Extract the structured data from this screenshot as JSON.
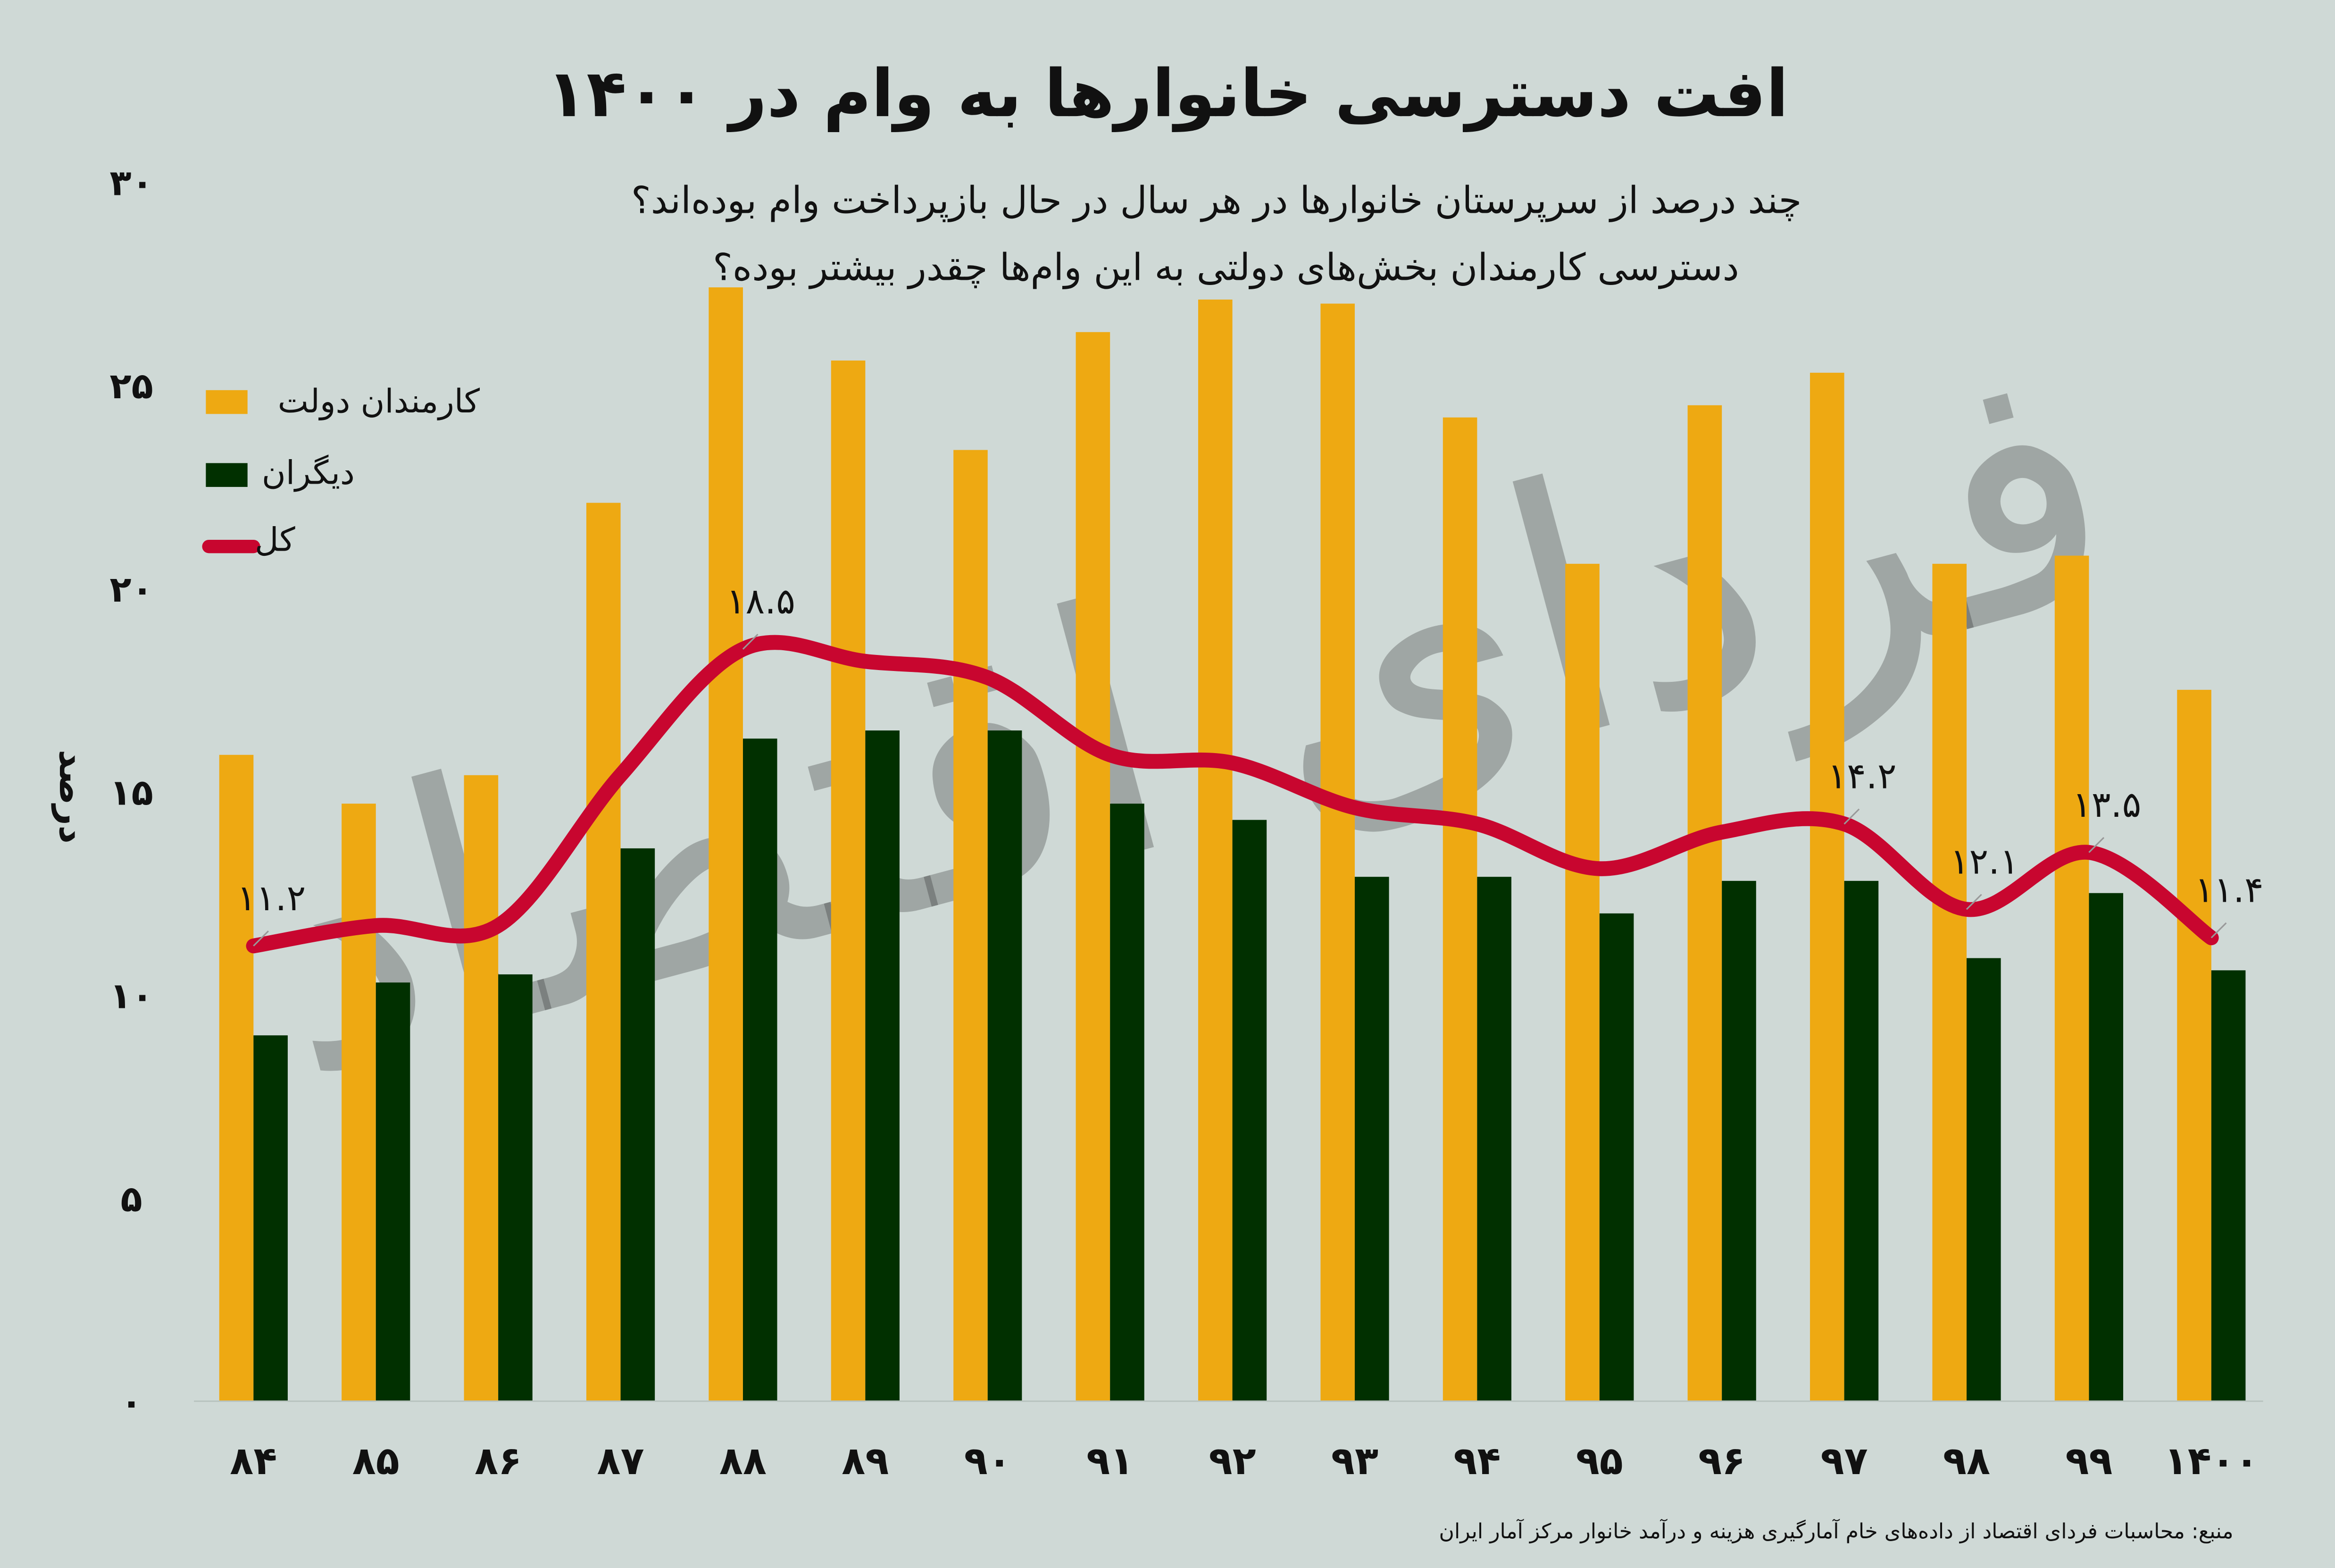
{
  "colors": {
    "background": "#cfd9d6",
    "government": "#eea912",
    "others": "#013000",
    "total": "#c8062f"
  },
  "chart_data": {
    "type": "bar",
    "title": "افت دسترسی خانوارها به وام در ۱۴۰۰",
    "subtitle_lines": [
      "چند درصد از سرپرستان خانوارها در هر سال در حال بازپرداخت وام بوده‌اند؟",
      "دسترسی کارمندان بخش‌های دولتی به این وام‌ها چقدر بیشتر بوده؟"
    ],
    "ylabel": "درصد",
    "xlabel": "",
    "ylim": [
      0,
      30
    ],
    "yticks": [
      0,
      5,
      10,
      15,
      20,
      25,
      30
    ],
    "ytick_labels": [
      "۰",
      "۵",
      "۱۰",
      "۱۵",
      "۲۰",
      "۲۵",
      "۳۰"
    ],
    "grid": false,
    "legend_position": "top-left",
    "categories": [
      "۸۴",
      "۸۵",
      "۸۶",
      "۸۷",
      "۸۸",
      "۸۹",
      "۹۰",
      "۹۱",
      "۹۲",
      "۹۳",
      "۹۴",
      "۹۵",
      "۹۶",
      "۹۷",
      "۹۸",
      "۹۹",
      "۱۴۰۰"
    ],
    "series": [
      {
        "name": "کارمندان دولت",
        "type": "bar",
        "values": [
          15.9,
          14.7,
          15.4,
          22.1,
          27.4,
          25.6,
          23.4,
          26.3,
          27.1,
          27.0,
          24.2,
          20.6,
          24.5,
          25.3,
          20.6,
          20.8,
          17.5
        ]
      },
      {
        "name": "دیگران",
        "type": "bar",
        "values": [
          9.0,
          10.3,
          10.5,
          13.6,
          16.3,
          16.5,
          16.5,
          14.7,
          14.3,
          12.9,
          12.9,
          12.0,
          12.8,
          12.8,
          10.9,
          12.5,
          10.6
        ]
      },
      {
        "name": "کل",
        "type": "line",
        "values": [
          11.2,
          11.7,
          11.7,
          15.4,
          18.5,
          18.2,
          17.8,
          15.9,
          15.7,
          14.6,
          14.2,
          13.1,
          14.0,
          14.2,
          12.1,
          13.5,
          11.4
        ]
      }
    ],
    "data_labels": [
      {
        "category": "۸۴",
        "text": "۱۱.۲"
      },
      {
        "category": "۸۸",
        "text": "۱۸.۵"
      },
      {
        "category": "۹۷",
        "text": "۱۴.۲"
      },
      {
        "category": "۹۸",
        "text": "۱۲.۱"
      },
      {
        "category": "۹۹",
        "text": "۱۳.۵"
      },
      {
        "category": "۱۴۰۰",
        "text": "۱۱.۴"
      }
    ]
  },
  "source": "منبع: محاسبات فردای اقتصاد از داده‌های خام آمارگیری هزینه و درآمد خانوار مرکز آمار ایران",
  "watermark": "فردای اقتصاد"
}
